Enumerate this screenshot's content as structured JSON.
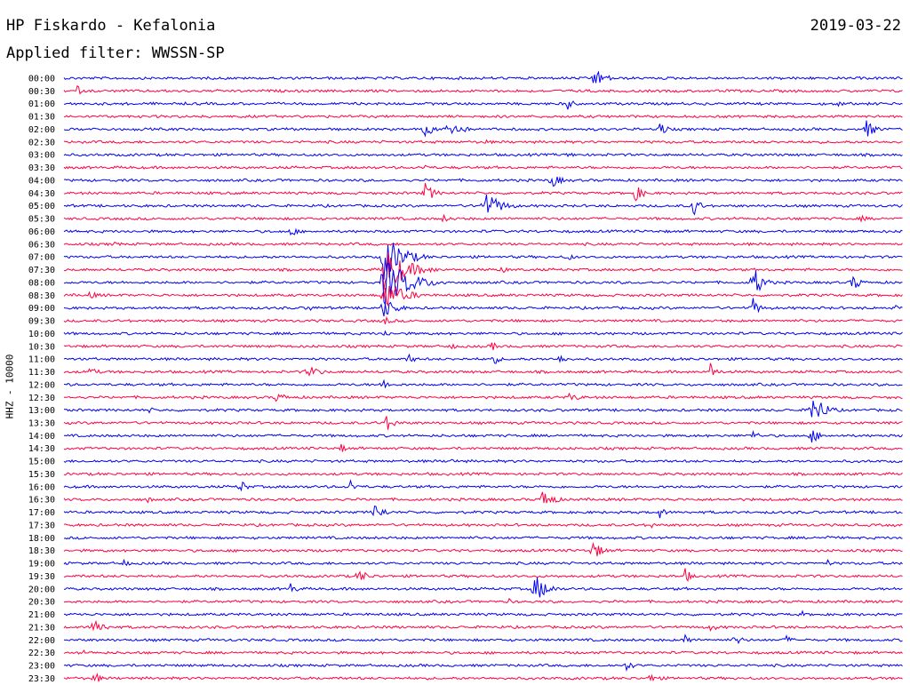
{
  "header": {
    "title": "HP Fiskardo - Kefalonia",
    "date": "2019-03-22",
    "filter": "Applied filter: WWSSN-SP",
    "channel_label": "HHZ - 10000"
  },
  "colors": {
    "blue": "#0000ee",
    "red": "#ff0040"
  },
  "chart_data": {
    "type": "line",
    "title": "HP Fiskardo - Kefalonia",
    "subtitle": "Applied filter: WWSSN-SP",
    "ylabel": "HHZ - 10000",
    "xlabel": "",
    "grid": false,
    "legend": "none",
    "rows": [
      {
        "label": "00:00",
        "color": "blue",
        "events": [
          {
            "x": 0.63,
            "amp": 12,
            "dur": 0.04
          }
        ]
      },
      {
        "label": "00:30",
        "color": "red",
        "events": [
          {
            "x": 0.015,
            "amp": 10,
            "dur": 0.01
          }
        ]
      },
      {
        "label": "01:00",
        "color": "blue",
        "events": [
          {
            "x": 0.6,
            "amp": 8,
            "dur": 0.02
          },
          {
            "x": 0.92,
            "amp": 6,
            "dur": 0.02
          }
        ]
      },
      {
        "label": "01:30",
        "color": "red",
        "events": [
          {
            "x": 0.035,
            "amp": 4,
            "dur": 0.01
          }
        ]
      },
      {
        "label": "02:00",
        "color": "blue",
        "events": [
          {
            "x": 0.43,
            "amp": 14,
            "dur": 0.02
          },
          {
            "x": 0.455,
            "amp": 14,
            "dur": 0.04
          },
          {
            "x": 0.71,
            "amp": 10,
            "dur": 0.02
          },
          {
            "x": 0.955,
            "amp": 12,
            "dur": 0.03
          }
        ]
      },
      {
        "label": "02:30",
        "color": "red",
        "events": [
          {
            "x": 0.5,
            "amp": 4,
            "dur": 0.02
          }
        ]
      },
      {
        "label": "03:00",
        "color": "blue",
        "events": [
          {
            "x": 0.6,
            "amp": 5,
            "dur": 0.02
          }
        ]
      },
      {
        "label": "03:30",
        "color": "red",
        "events": [
          {
            "x": 0.43,
            "amp": 6,
            "dur": 0.01
          }
        ]
      },
      {
        "label": "04:00",
        "color": "blue",
        "events": [
          {
            "x": 0.58,
            "amp": 10,
            "dur": 0.03
          }
        ]
      },
      {
        "label": "04:30",
        "color": "red",
        "events": [
          {
            "x": 0.43,
            "amp": 12,
            "dur": 0.03
          },
          {
            "x": 0.68,
            "amp": 10,
            "dur": 0.03
          }
        ]
      },
      {
        "label": "05:00",
        "color": "blue",
        "events": [
          {
            "x": 0.5,
            "amp": 18,
            "dur": 0.05
          },
          {
            "x": 0.75,
            "amp": 14,
            "dur": 0.02
          }
        ]
      },
      {
        "label": "05:30",
        "color": "red",
        "events": [
          {
            "x": 0.45,
            "amp": 5,
            "dur": 0.04
          },
          {
            "x": 0.95,
            "amp": 4,
            "dur": 0.03
          }
        ]
      },
      {
        "label": "06:00",
        "color": "blue",
        "events": [
          {
            "x": 0.27,
            "amp": 8,
            "dur": 0.02
          }
        ]
      },
      {
        "label": "06:30",
        "color": "red",
        "events": [
          {
            "x": 0.06,
            "amp": 5,
            "dur": 0.02
          }
        ]
      },
      {
        "label": "07:00",
        "color": "blue",
        "events": [
          {
            "x": 0.38,
            "amp": 30,
            "dur": 0.06
          },
          {
            "x": 0.6,
            "amp": 6,
            "dur": 0.02
          }
        ]
      },
      {
        "label": "07:30",
        "color": "red",
        "events": [
          {
            "x": 0.38,
            "amp": 30,
            "dur": 0.07
          },
          {
            "x": 0.52,
            "amp": 6,
            "dur": 0.02
          }
        ]
      },
      {
        "label": "08:00",
        "color": "blue",
        "events": [
          {
            "x": 0.38,
            "amp": 30,
            "dur": 0.08
          },
          {
            "x": 0.82,
            "amp": 22,
            "dur": 0.03
          },
          {
            "x": 0.94,
            "amp": 14,
            "dur": 0.02
          }
        ]
      },
      {
        "label": "08:30",
        "color": "red",
        "events": [
          {
            "x": 0.38,
            "amp": 20,
            "dur": 0.06
          },
          {
            "x": 0.03,
            "amp": 4,
            "dur": 0.05
          }
        ]
      },
      {
        "label": "09:00",
        "color": "blue",
        "events": [
          {
            "x": 0.38,
            "amp": 14,
            "dur": 0.04
          },
          {
            "x": 0.29,
            "amp": 6,
            "dur": 0.02
          },
          {
            "x": 0.82,
            "amp": 14,
            "dur": 0.02
          },
          {
            "x": 0.99,
            "amp": 6,
            "dur": 0.01
          }
        ]
      },
      {
        "label": "09:30",
        "color": "red",
        "events": [
          {
            "x": 0.38,
            "amp": 6,
            "dur": 0.03
          }
        ]
      },
      {
        "label": "10:00",
        "color": "blue",
        "events": [
          {
            "x": 0.38,
            "amp": 6,
            "dur": 0.02
          }
        ]
      },
      {
        "label": "10:30",
        "color": "red",
        "events": [
          {
            "x": 0.46,
            "amp": 5,
            "dur": 0.02
          },
          {
            "x": 0.51,
            "amp": 6,
            "dur": 0.02
          }
        ]
      },
      {
        "label": "11:00",
        "color": "blue",
        "events": [
          {
            "x": 0.41,
            "amp": 8,
            "dur": 0.02
          },
          {
            "x": 0.51,
            "amp": 10,
            "dur": 0.02
          },
          {
            "x": 0.59,
            "amp": 9,
            "dur": 0.02
          }
        ]
      },
      {
        "label": "11:30",
        "color": "red",
        "events": [
          {
            "x": 0.03,
            "amp": 6,
            "dur": 0.03
          },
          {
            "x": 0.29,
            "amp": 8,
            "dur": 0.04
          },
          {
            "x": 0.77,
            "amp": 12,
            "dur": 0.02
          }
        ]
      },
      {
        "label": "12:00",
        "color": "blue",
        "events": [
          {
            "x": 0.38,
            "amp": 10,
            "dur": 0.02
          }
        ]
      },
      {
        "label": "12:30",
        "color": "red",
        "events": [
          {
            "x": 0.25,
            "amp": 6,
            "dur": 0.05
          },
          {
            "x": 0.6,
            "amp": 5,
            "dur": 0.05
          }
        ]
      },
      {
        "label": "13:00",
        "color": "blue",
        "events": [
          {
            "x": 0.89,
            "amp": 22,
            "dur": 0.04
          },
          {
            "x": 0.1,
            "amp": 5,
            "dur": 0.02
          }
        ]
      },
      {
        "label": "13:30",
        "color": "red",
        "events": [
          {
            "x": 0.38,
            "amp": 14,
            "dur": 0.03
          }
        ]
      },
      {
        "label": "14:00",
        "color": "blue",
        "events": [
          {
            "x": 0.82,
            "amp": 8,
            "dur": 0.02
          },
          {
            "x": 0.89,
            "amp": 10,
            "dur": 0.03
          }
        ]
      },
      {
        "label": "14:30",
        "color": "red",
        "events": [
          {
            "x": 0.33,
            "amp": 6,
            "dur": 0.02
          }
        ]
      },
      {
        "label": "15:00",
        "color": "blue",
        "events": [
          {
            "x": 0.46,
            "amp": 5,
            "dur": 0.02
          }
        ]
      },
      {
        "label": "15:30",
        "color": "red",
        "events": []
      },
      {
        "label": "16:00",
        "color": "blue",
        "events": [
          {
            "x": 0.21,
            "amp": 10,
            "dur": 0.02
          },
          {
            "x": 0.34,
            "amp": 10,
            "dur": 0.02
          }
        ]
      },
      {
        "label": "16:30",
        "color": "red",
        "events": [
          {
            "x": 0.57,
            "amp": 16,
            "dur": 0.03
          },
          {
            "x": 0.1,
            "amp": 4,
            "dur": 0.02
          }
        ]
      },
      {
        "label": "17:00",
        "color": "blue",
        "events": [
          {
            "x": 0.37,
            "amp": 12,
            "dur": 0.03
          },
          {
            "x": 0.71,
            "amp": 7,
            "dur": 0.02
          }
        ]
      },
      {
        "label": "17:30",
        "color": "red",
        "events": [
          {
            "x": 0.7,
            "amp": 4,
            "dur": 0.02
          }
        ]
      },
      {
        "label": "18:00",
        "color": "blue",
        "events": [
          {
            "x": 0.91,
            "amp": 4,
            "dur": 0.02
          }
        ]
      },
      {
        "label": "18:30",
        "color": "red",
        "events": [
          {
            "x": 0.63,
            "amp": 12,
            "dur": 0.03
          }
        ]
      },
      {
        "label": "19:00",
        "color": "blue",
        "events": [
          {
            "x": 0.07,
            "amp": 6,
            "dur": 0.02
          },
          {
            "x": 0.91,
            "amp": 5,
            "dur": 0.01
          }
        ]
      },
      {
        "label": "19:30",
        "color": "red",
        "events": [
          {
            "x": 0.35,
            "amp": 10,
            "dur": 0.03
          },
          {
            "x": 0.74,
            "amp": 10,
            "dur": 0.02
          }
        ]
      },
      {
        "label": "20:00",
        "color": "blue",
        "events": [
          {
            "x": 0.56,
            "amp": 18,
            "dur": 0.04
          },
          {
            "x": 0.27,
            "amp": 8,
            "dur": 0.02
          }
        ]
      },
      {
        "label": "20:30",
        "color": "red",
        "events": [
          {
            "x": 0.53,
            "amp": 4,
            "dur": 0.02
          }
        ]
      },
      {
        "label": "21:00",
        "color": "blue",
        "events": [
          {
            "x": 0.88,
            "amp": 4,
            "dur": 0.01
          }
        ]
      },
      {
        "label": "21:30",
        "color": "red",
        "events": [
          {
            "x": 0.035,
            "amp": 14,
            "dur": 0.03
          },
          {
            "x": 0.77,
            "amp": 5,
            "dur": 0.03
          }
        ]
      },
      {
        "label": "22:00",
        "color": "blue",
        "events": [
          {
            "x": 0.74,
            "amp": 8,
            "dur": 0.02
          },
          {
            "x": 0.8,
            "amp": 9,
            "dur": 0.02
          },
          {
            "x": 0.86,
            "amp": 6,
            "dur": 0.02
          }
        ]
      },
      {
        "label": "22:30",
        "color": "red",
        "events": [
          {
            "x": 0.02,
            "amp": 5,
            "dur": 0.02
          }
        ]
      },
      {
        "label": "23:00",
        "color": "blue",
        "events": [
          {
            "x": 0.67,
            "amp": 8,
            "dur": 0.02
          }
        ]
      },
      {
        "label": "23:30",
        "color": "red",
        "events": [
          {
            "x": 0.035,
            "amp": 10,
            "dur": 0.02
          },
          {
            "x": 0.7,
            "amp": 10,
            "dur": 0.02
          }
        ]
      }
    ]
  }
}
